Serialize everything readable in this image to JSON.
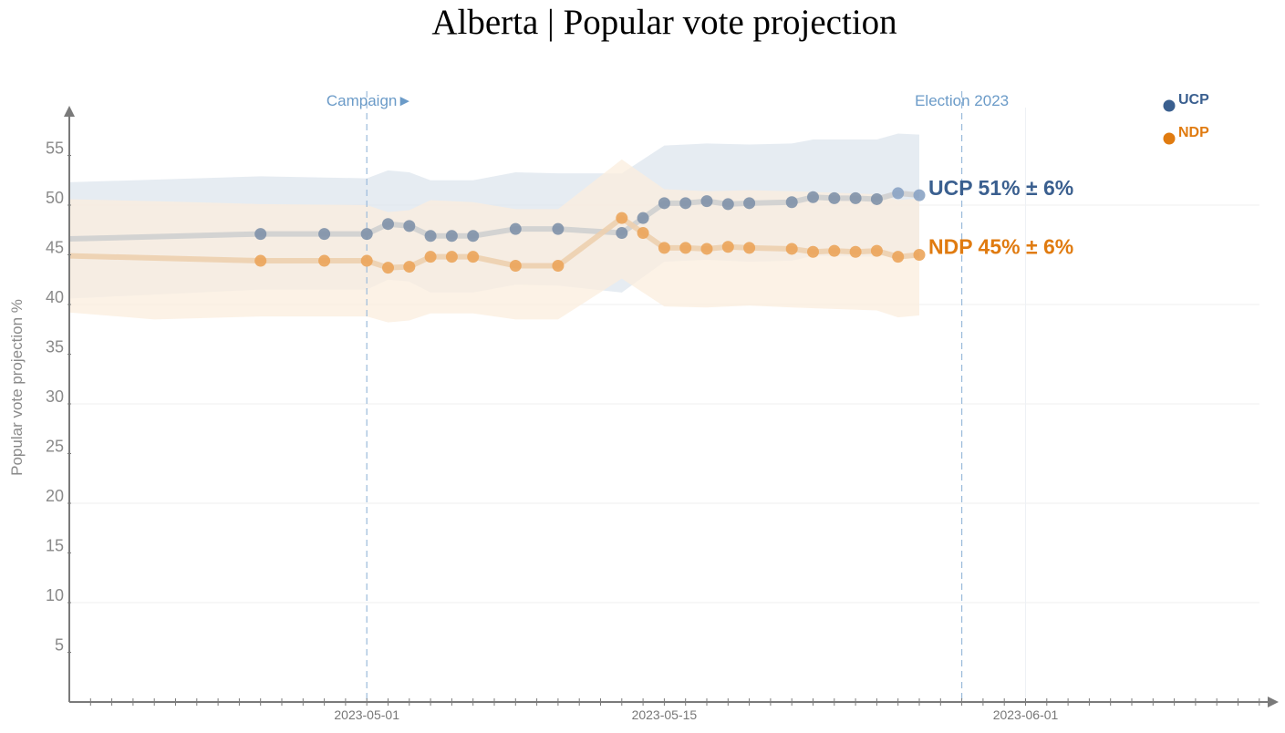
{
  "chart_data": {
    "type": "line",
    "title": "Alberta | Popular vote projection",
    "xlabel": "",
    "ylabel": "Popular vote projection %",
    "ylim": [
      0,
      60
    ],
    "xlim": [
      "2023-04-17",
      "2023-06-12"
    ],
    "yticks": [
      5,
      10,
      15,
      20,
      25,
      30,
      35,
      40,
      45,
      50,
      55
    ],
    "xtick_labels": [
      "2023-05-01",
      "2023-05-15",
      "2023-06-01"
    ],
    "grid": true,
    "legend_position": "top-right",
    "annotations": [
      {
        "label": "Campaign►",
        "date": "2023-05-01"
      },
      {
        "label": "Election 2023",
        "date": "2023-05-29"
      }
    ],
    "series": [
      {
        "name": "UCP",
        "color": "#3a5f8f",
        "marker_color": "#7f91a9",
        "band_color": "#dde5ee",
        "end_label": "UCP 51% ± 6%",
        "margin": 6,
        "start": {
          "date": "2023-04-17",
          "value": 46.6
        },
        "points": [
          {
            "date": "2023-04-26",
            "value": 47.1
          },
          {
            "date": "2023-04-29",
            "value": 47.1
          },
          {
            "date": "2023-05-01",
            "value": 47.1
          },
          {
            "date": "2023-05-02",
            "value": 48.1
          },
          {
            "date": "2023-05-03",
            "value": 47.9
          },
          {
            "date": "2023-05-04",
            "value": 46.9
          },
          {
            "date": "2023-05-05",
            "value": 46.9
          },
          {
            "date": "2023-05-06",
            "value": 46.9
          },
          {
            "date": "2023-05-08",
            "value": 47.6
          },
          {
            "date": "2023-05-10",
            "value": 47.6
          },
          {
            "date": "2023-05-13",
            "value": 47.2
          },
          {
            "date": "2023-05-14",
            "value": 48.7
          },
          {
            "date": "2023-05-15",
            "value": 50.2
          },
          {
            "date": "2023-05-16",
            "value": 50.2
          },
          {
            "date": "2023-05-17",
            "value": 50.4
          },
          {
            "date": "2023-05-18",
            "value": 50.1
          },
          {
            "date": "2023-05-19",
            "value": 50.2
          },
          {
            "date": "2023-05-21",
            "value": 50.3
          },
          {
            "date": "2023-05-22",
            "value": 50.8
          },
          {
            "date": "2023-05-23",
            "value": 50.7
          },
          {
            "date": "2023-05-24",
            "value": 50.7
          },
          {
            "date": "2023-05-25",
            "value": 50.6
          },
          {
            "date": "2023-05-26",
            "value": 51.2
          },
          {
            "date": "2023-05-27",
            "value": 51.0
          }
        ],
        "band": {
          "dates": [
            "2023-04-17",
            "2023-04-26",
            "2023-05-01",
            "2023-05-02",
            "2023-05-03",
            "2023-05-04",
            "2023-05-06",
            "2023-05-08",
            "2023-05-10",
            "2023-05-13",
            "2023-05-15",
            "2023-05-17",
            "2023-05-19",
            "2023-05-21",
            "2023-05-22",
            "2023-05-25",
            "2023-05-26",
            "2023-05-27"
          ],
          "upper": [
            52.3,
            52.9,
            52.7,
            53.5,
            53.3,
            52.5,
            52.5,
            53.3,
            53.2,
            53.2,
            56.0,
            56.2,
            56.1,
            56.2,
            56.6,
            56.6,
            57.2,
            57.1
          ],
          "lower": [
            40.6,
            41.5,
            41.5,
            42.5,
            42.3,
            41.2,
            41.2,
            42.0,
            41.9,
            41.2,
            44.3,
            44.5,
            44.3,
            44.4,
            44.9,
            44.8,
            45.2,
            45.1
          ]
        }
      },
      {
        "name": "NDP",
        "color": "#e07b10",
        "marker_color": "#eba45a",
        "band_color": "#fbeede",
        "end_label": "NDP 45% ± 6%",
        "margin": 6,
        "start": {
          "date": "2023-04-17",
          "value": 44.9
        },
        "points": [
          {
            "date": "2023-04-26",
            "value": 44.4
          },
          {
            "date": "2023-04-29",
            "value": 44.4
          },
          {
            "date": "2023-05-01",
            "value": 44.4
          },
          {
            "date": "2023-05-02",
            "value": 43.7
          },
          {
            "date": "2023-05-03",
            "value": 43.8
          },
          {
            "date": "2023-05-04",
            "value": 44.8
          },
          {
            "date": "2023-05-05",
            "value": 44.8
          },
          {
            "date": "2023-05-06",
            "value": 44.8
          },
          {
            "date": "2023-05-08",
            "value": 43.9
          },
          {
            "date": "2023-05-10",
            "value": 43.9
          },
          {
            "date": "2023-05-13",
            "value": 48.7
          },
          {
            "date": "2023-05-14",
            "value": 47.2
          },
          {
            "date": "2023-05-15",
            "value": 45.7
          },
          {
            "date": "2023-05-16",
            "value": 45.7
          },
          {
            "date": "2023-05-17",
            "value": 45.6
          },
          {
            "date": "2023-05-18",
            "value": 45.8
          },
          {
            "date": "2023-05-19",
            "value": 45.7
          },
          {
            "date": "2023-05-21",
            "value": 45.6
          },
          {
            "date": "2023-05-22",
            "value": 45.3
          },
          {
            "date": "2023-05-23",
            "value": 45.4
          },
          {
            "date": "2023-05-24",
            "value": 45.3
          },
          {
            "date": "2023-05-25",
            "value": 45.4
          },
          {
            "date": "2023-05-26",
            "value": 44.8
          },
          {
            "date": "2023-05-27",
            "value": 45.0
          }
        ],
        "band": {
          "dates": [
            "2023-04-17",
            "2023-04-21",
            "2023-04-26",
            "2023-05-01",
            "2023-05-02",
            "2023-05-03",
            "2023-05-04",
            "2023-05-06",
            "2023-05-08",
            "2023-05-10",
            "2023-05-13",
            "2023-05-15",
            "2023-05-17",
            "2023-05-19",
            "2023-05-21",
            "2023-05-25",
            "2023-05-26",
            "2023-05-27"
          ],
          "upper": [
            50.6,
            50.4,
            50.1,
            50.0,
            49.3,
            49.5,
            50.5,
            50.3,
            49.6,
            49.6,
            54.6,
            51.6,
            51.4,
            51.5,
            51.4,
            51.1,
            50.5,
            50.7
          ],
          "lower": [
            39.2,
            38.5,
            38.8,
            38.8,
            38.2,
            38.4,
            39.1,
            39.1,
            38.5,
            38.5,
            42.6,
            39.8,
            39.7,
            39.9,
            39.7,
            39.4,
            38.7,
            38.9
          ]
        }
      }
    ]
  }
}
